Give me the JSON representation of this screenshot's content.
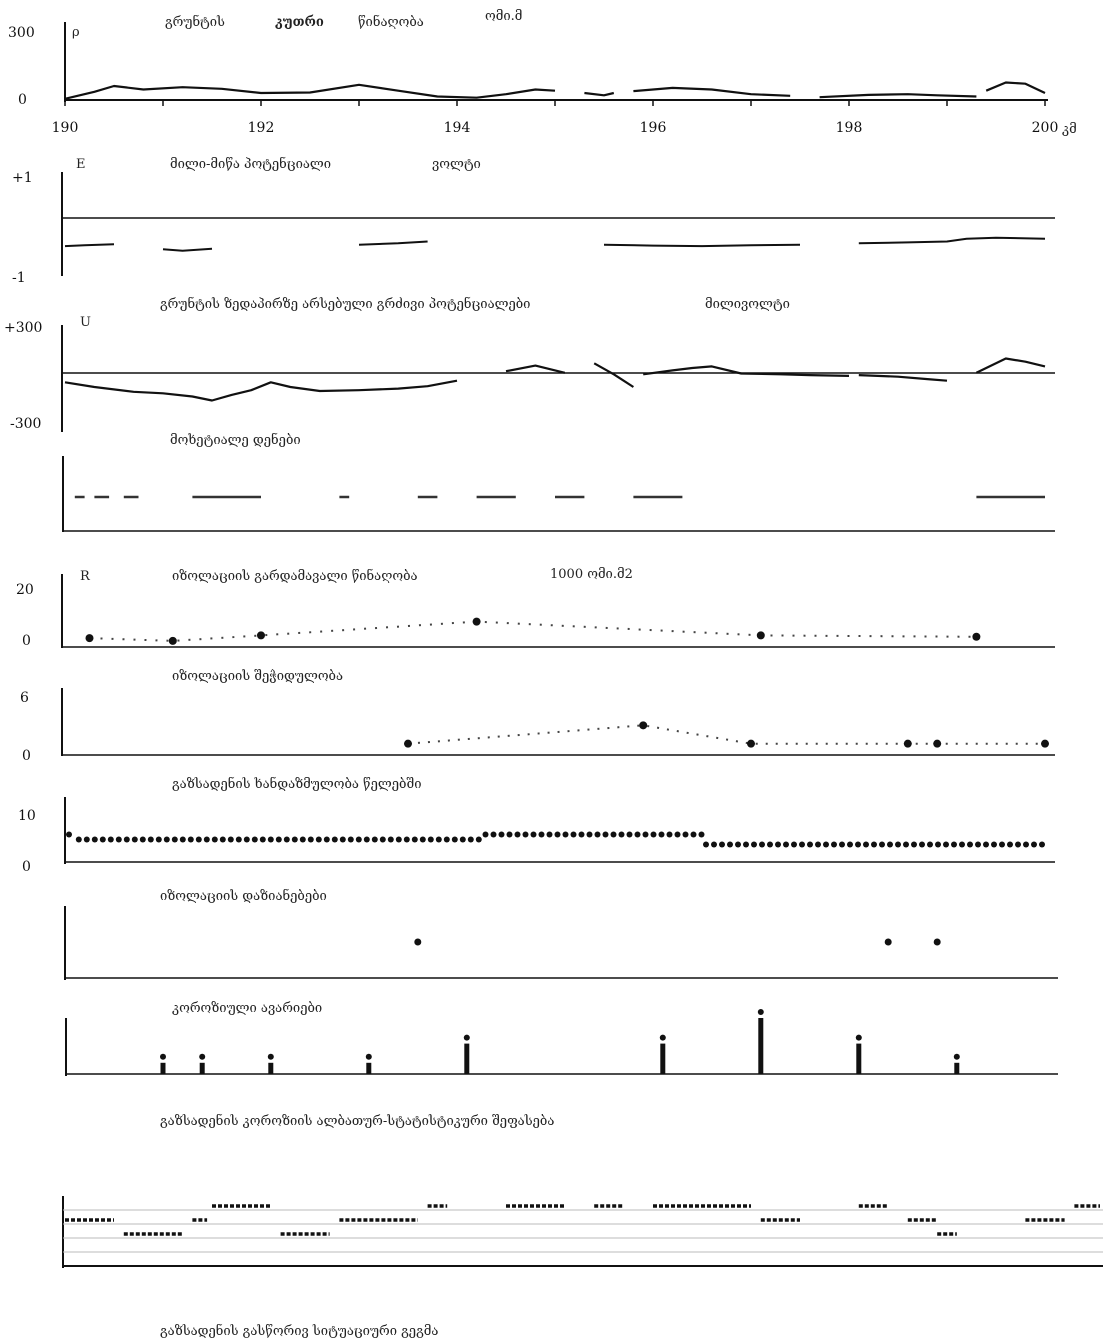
{
  "chart_data": [
    {
      "type": "line",
      "symbol": "ρ",
      "title_parts": [
        "გრუნტის",
        "კუთრი",
        "წინაღობა"
      ],
      "unit": "ომი.მ",
      "y_ticks": [
        "300",
        "0"
      ],
      "ylim": [
        0,
        300
      ],
      "xlim": [
        190,
        200
      ],
      "x_ticks": [
        "190",
        "192",
        "194",
        "196",
        "198",
        "200"
      ],
      "x_unit": "კმ",
      "segments": [
        [
          [
            190.0,
            5
          ],
          [
            190.3,
            35
          ],
          [
            190.5,
            60
          ],
          [
            190.8,
            45
          ],
          [
            191.2,
            55
          ],
          [
            191.6,
            48
          ],
          [
            192.0,
            30
          ],
          [
            192.5,
            32
          ],
          [
            193.0,
            65
          ],
          [
            193.4,
            40
          ],
          [
            193.8,
            15
          ],
          [
            194.2,
            10
          ],
          [
            194.5,
            25
          ],
          [
            194.8,
            45
          ],
          [
            195.0,
            40
          ]
        ],
        [
          [
            195.3,
            30
          ],
          [
            195.5,
            20
          ],
          [
            195.6,
            30
          ]
        ],
        [
          [
            195.8,
            38
          ],
          [
            196.2,
            52
          ],
          [
            196.6,
            45
          ],
          [
            197.0,
            25
          ],
          [
            197.4,
            18
          ]
        ],
        [
          [
            197.7,
            12
          ],
          [
            198.2,
            22
          ],
          [
            198.6,
            25
          ],
          [
            198.9,
            20
          ],
          [
            199.3,
            15
          ]
        ],
        [
          [
            199.4,
            40
          ],
          [
            199.6,
            75
          ],
          [
            199.8,
            70
          ],
          [
            200.0,
            30
          ]
        ]
      ]
    },
    {
      "type": "line",
      "symbol": "E",
      "title": "მილი-მიწა პოტენციალი",
      "unit": "ვოლტი",
      "y_ticks": [
        "+1",
        "-1"
      ],
      "ylim": [
        -1,
        1
      ],
      "xlim": [
        190,
        200
      ],
      "segments": [
        [
          [
            190.0,
            -0.48
          ],
          [
            190.2,
            -0.46
          ],
          [
            190.5,
            -0.44
          ]
        ],
        [
          [
            191.0,
            -0.55
          ],
          [
            191.2,
            -0.58
          ],
          [
            191.5,
            -0.54
          ]
        ],
        [
          [
            193.0,
            -0.45
          ],
          [
            193.4,
            -0.42
          ],
          [
            193.7,
            -0.38
          ]
        ],
        [
          [
            195.5,
            -0.45
          ],
          [
            196.0,
            -0.47
          ],
          [
            196.5,
            -0.48
          ],
          [
            197.0,
            -0.46
          ],
          [
            197.5,
            -0.45
          ]
        ],
        [
          [
            198.1,
            -0.42
          ],
          [
            198.6,
            -0.4
          ],
          [
            199.0,
            -0.38
          ],
          [
            199.2,
            -0.32
          ],
          [
            199.5,
            -0.3
          ],
          [
            200.0,
            -0.32
          ]
        ]
      ]
    },
    {
      "type": "line",
      "title": "გრუნტის ზედაპირზე არსებული გრძივი პოტენციალები",
      "unit": "მილივოლტი"
    },
    {
      "type": "line",
      "symbol": "U",
      "y_ticks": [
        "+300",
        "-300"
      ],
      "ylim": [
        -300,
        300
      ],
      "xlim": [
        190,
        200
      ],
      "segments": [
        [
          [
            190.0,
            -30
          ],
          [
            190.3,
            -60
          ],
          [
            190.7,
            -90
          ],
          [
            191.0,
            -100
          ],
          [
            191.3,
            -120
          ],
          [
            191.5,
            -145
          ],
          [
            191.7,
            -110
          ],
          [
            191.9,
            -80
          ],
          [
            192.1,
            -30
          ],
          [
            192.3,
            -60
          ],
          [
            192.6,
            -85
          ],
          [
            193.0,
            -80
          ],
          [
            193.4,
            -70
          ],
          [
            193.7,
            -55
          ],
          [
            194.0,
            -20
          ]
        ],
        [
          [
            194.5,
            40
          ],
          [
            194.8,
            75
          ],
          [
            195.1,
            30
          ]
        ],
        [
          [
            195.4,
            90
          ],
          [
            195.6,
            20
          ],
          [
            195.8,
            -60
          ]
        ],
        [
          [
            195.9,
            20
          ],
          [
            196.2,
            45
          ],
          [
            196.4,
            60
          ],
          [
            196.6,
            70
          ],
          [
            196.9,
            25
          ],
          [
            197.3,
            20
          ],
          [
            197.6,
            15
          ],
          [
            198.0,
            10
          ]
        ],
        [
          [
            198.1,
            15
          ],
          [
            198.5,
            5
          ],
          [
            198.8,
            -10
          ],
          [
            199.0,
            -20
          ]
        ],
        [
          [
            199.3,
            30
          ],
          [
            199.6,
            120
          ],
          [
            199.8,
            100
          ],
          [
            200.0,
            70
          ]
        ]
      ]
    },
    {
      "type": "bar",
      "title": "მოხეტიალე დენები",
      "xlim": [
        190,
        200
      ],
      "segments": [
        [
          190.1,
          190.2
        ],
        [
          190.3,
          190.45
        ],
        [
          190.6,
          190.75
        ],
        [
          191.3,
          192.0
        ],
        [
          192.8,
          192.9
        ],
        [
          193.6,
          193.8
        ],
        [
          194.2,
          194.6
        ],
        [
          195.0,
          195.3
        ],
        [
          195.8,
          196.3
        ],
        [
          199.3,
          200.0
        ]
      ]
    },
    {
      "type": "scatter",
      "symbol": "R",
      "title": "იზოლაციის გარდამავალი წინაღობა",
      "unit": "1000 ომი.მ2",
      "y_ticks": [
        "20",
        "0"
      ],
      "ylim": [
        0,
        20
      ],
      "xlim": [
        190,
        200
      ],
      "points": [
        [
          190.25,
          2.5
        ],
        [
          191.1,
          1.5
        ],
        [
          192.0,
          3.5
        ],
        [
          194.2,
          8.5
        ],
        [
          197.1,
          3.5
        ],
        [
          199.3,
          3.0
        ]
      ]
    },
    {
      "type": "scatter",
      "title": "იზოლაციის შეჭიდულობა",
      "y_ticks": [
        "6",
        "0"
      ],
      "ylim": [
        0,
        6
      ],
      "xlim": [
        190,
        200
      ],
      "points": [
        [
          193.5,
          1.0
        ],
        [
          195.9,
          3.2
        ],
        [
          197.0,
          1.0
        ],
        [
          198.6,
          1.0
        ],
        [
          198.9,
          1.0
        ],
        [
          200.0,
          1.0
        ]
      ]
    },
    {
      "type": "scatter",
      "title": "გაზსადენის ხანდაზმულობა წელებში",
      "y_ticks": [
        "10",
        "0"
      ],
      "ylim": [
        0,
        10
      ],
      "xlim": [
        190,
        200
      ],
      "levels": [
        [
          190.0,
          190.1,
          5.5
        ],
        [
          190.1,
          194.25,
          4.5
        ],
        [
          194.25,
          196.5,
          5.5
        ],
        [
          196.5,
          200.0,
          3.5
        ]
      ]
    },
    {
      "type": "scatter",
      "title": "იზოლაციის დაზიანებები",
      "xlim": [
        190,
        200
      ],
      "points": [
        [
          193.6,
          0
        ],
        [
          198.4,
          0
        ],
        [
          198.9,
          0
        ]
      ]
    },
    {
      "type": "bar",
      "title": "კოროზიული ავარიები",
      "xlim": [
        190,
        200
      ],
      "bars": [
        [
          191.0,
          0.3
        ],
        [
          191.4,
          0.3
        ],
        [
          192.1,
          0.3
        ],
        [
          193.1,
          0.3
        ],
        [
          194.1,
          0.6
        ],
        [
          196.1,
          0.6
        ],
        [
          197.1,
          1.0
        ],
        [
          198.1,
          0.6
        ],
        [
          199.1,
          0.3
        ]
      ]
    },
    {
      "type": "line",
      "title": "გაზსადენის კოროზიის ალბათურ-სტატისტიკური შეფასება",
      "xlim": [
        190,
        200
      ],
      "levels": [
        [
          190.0,
          190.5,
          3
        ],
        [
          190.6,
          191.2,
          2
        ],
        [
          191.3,
          191.45,
          3
        ],
        [
          191.5,
          192.1,
          4
        ],
        [
          192.2,
          192.7,
          2
        ],
        [
          192.8,
          193.6,
          3
        ],
        [
          193.7,
          193.9,
          4
        ],
        [
          194.5,
          195.1,
          4
        ],
        [
          195.4,
          195.7,
          4
        ],
        [
          196.0,
          197.0,
          4
        ],
        [
          197.1,
          197.5,
          3
        ],
        [
          198.1,
          198.4,
          4
        ],
        [
          198.6,
          198.9,
          3
        ],
        [
          198.9,
          199.1,
          2
        ],
        [
          199.8,
          200.2,
          3
        ],
        [
          200.3,
          200.6,
          4
        ]
      ]
    },
    {
      "type": "line",
      "title": "გაზსადენის გასწორივ სიტუაციური გეგმა"
    }
  ]
}
